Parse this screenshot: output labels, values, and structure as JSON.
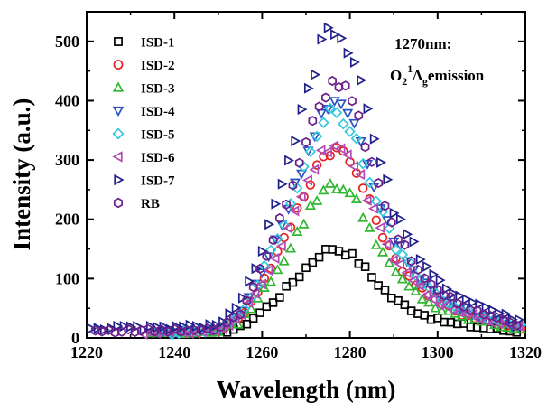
{
  "chart_data": {
    "type": "scatter",
    "title": "",
    "xlabel": "Wavelength (nm)",
    "ylabel": "Intensity (a.u.)",
    "xlim": [
      1220,
      1320
    ],
    "ylim": [
      0,
      550
    ],
    "xticks": [
      1220,
      1240,
      1260,
      1280,
      1300,
      1320
    ],
    "yticks": [
      0,
      100,
      200,
      300,
      400,
      500
    ],
    "grid": false,
    "legend_position": "top-left",
    "annotation": {
      "line1": "1270nm:",
      "line2_prefix": "O",
      "line2_sub1": "2",
      "line2_sup": "1",
      "line2_delta": "Δ",
      "line2_sub2": "g",
      "line2_suffix": "emission"
    },
    "profile": {
      "x": [
        1220,
        1240,
        1250,
        1255,
        1260,
        1265,
        1270,
        1273,
        1276,
        1279,
        1282,
        1285,
        1290,
        1295,
        1300,
        1305,
        1310,
        1315,
        1320
      ],
      "y": [
        0.05,
        0.05,
        0.06,
        0.12,
        0.3,
        0.52,
        0.78,
        0.93,
        1.0,
        0.96,
        0.85,
        0.68,
        0.43,
        0.3,
        0.2,
        0.15,
        0.12,
        0.09,
        0.07
      ]
    },
    "series": [
      {
        "name": "ISD-1",
        "marker": "square",
        "color": "#000000",
        "peak": 152,
        "base": 7,
        "step": 1.5,
        "start": 1249
      },
      {
        "name": "ISD-2",
        "marker": "circle",
        "color": "#e8201f",
        "peak": 322,
        "base": 10,
        "step": 1.5,
        "start": 1241
      },
      {
        "name": "ISD-3",
        "marker": "triangle-up",
        "color": "#2fb82f",
        "peak": 262,
        "base": 9,
        "step": 1.5,
        "start": 1235
      },
      {
        "name": "ISD-4",
        "marker": "triangle-down",
        "color": "#2b53c2",
        "peak": 398,
        "base": 10,
        "step": 1.5,
        "start": 1236
      },
      {
        "name": "ISD-5",
        "marker": "diamond",
        "color": "#35c8dc",
        "peak": 385,
        "base": 9,
        "step": 1.5,
        "start": 1235
      },
      {
        "name": "ISD-6",
        "marker": "triangle-left",
        "color": "#b04cb6",
        "peak": 328,
        "base": 9,
        "step": 1.5,
        "start": 1233
      },
      {
        "name": "ISD-7",
        "marker": "triangle-right",
        "color": "#20208a",
        "peak": 520,
        "base": 17,
        "step": 1.5,
        "start": 1221
      },
      {
        "name": "RB",
        "marker": "hexagon",
        "color": "#6a1f8a",
        "peak": 432,
        "base": 12,
        "step": 1.5,
        "start": 1222
      }
    ]
  }
}
